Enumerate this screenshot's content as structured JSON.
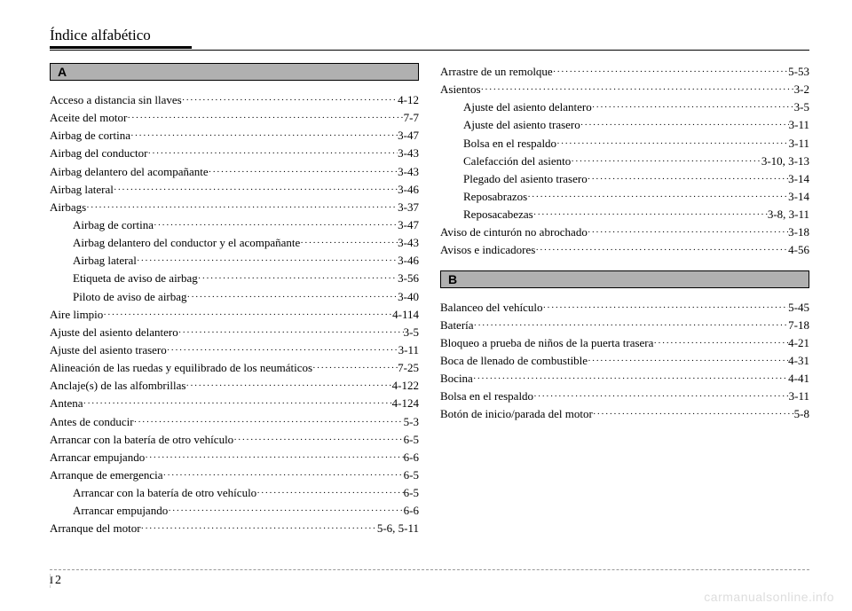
{
  "header": {
    "title": "Índice alfabético"
  },
  "footer": {
    "section": "I",
    "page": "2"
  },
  "watermark": "carmanualsonline.info",
  "leaders": "······················································································································",
  "letters": {
    "A": "A",
    "B": "B"
  },
  "col1": [
    {
      "letter": "A"
    },
    {
      "label": "Acceso a distancia sin llaves",
      "page": "4-12"
    },
    {
      "label": "Aceite del motor",
      "page": "7-7"
    },
    {
      "label": "Airbag de cortina",
      "page": "3-47"
    },
    {
      "label": "Airbag del conductor",
      "page": "3-43"
    },
    {
      "label": "Airbag delantero del acompañante",
      "page": "3-43"
    },
    {
      "label": "Airbag lateral",
      "page": "3-46"
    },
    {
      "label": "Airbags",
      "page": "3-37"
    },
    {
      "label": "Airbag de cortina",
      "page": "3-47",
      "indent": true
    },
    {
      "label": "Airbag delantero del conductor y el acompañante",
      "page": "3-43",
      "indent": true
    },
    {
      "label": "Airbag lateral",
      "page": "3-46",
      "indent": true
    },
    {
      "label": "Etiqueta de aviso de airbag",
      "page": "3-56",
      "indent": true
    },
    {
      "label": "Piloto de aviso de airbag",
      "page": "3-40",
      "indent": true
    },
    {
      "label": "Aire limpio",
      "page": "4-114"
    },
    {
      "label": "Ajuste del asiento delantero",
      "page": "3-5"
    },
    {
      "label": "Ajuste del asiento trasero",
      "page": "3-11"
    },
    {
      "label": "Alineación de las ruedas y equilibrado de los neumáticos",
      "page": "7-25"
    },
    {
      "label": "Anclaje(s) de las alfombrillas",
      "page": "4-122"
    },
    {
      "label": "Antena",
      "page": "4-124"
    },
    {
      "label": "Antes de conducir",
      "page": "5-3"
    },
    {
      "label": "Arrancar con la batería de otro vehículo",
      "page": "6-5"
    },
    {
      "label": "Arrancar empujando",
      "page": "6-6"
    },
    {
      "label": "Arranque de emergencia",
      "page": "6-5"
    },
    {
      "label": "Arrancar con la batería de otro vehículo",
      "page": "6-5",
      "indent": true
    },
    {
      "label": "Arrancar empujando",
      "page": "6-6",
      "indent": true
    },
    {
      "label": "Arranque del motor",
      "page": "5-6, 5-11"
    }
  ],
  "col2a": [
    {
      "label": "Arrastre de un remolque",
      "page": "5-53"
    },
    {
      "label": "Asientos",
      "page": "3-2"
    },
    {
      "label": "Ajuste del asiento delantero",
      "page": "3-5",
      "indent": true
    },
    {
      "label": "Ajuste del asiento trasero",
      "page": "3-11",
      "indent": true
    },
    {
      "label": "Bolsa en el respaldo",
      "page": "3-11",
      "indent": true
    },
    {
      "label": "Calefacción del asiento",
      "page": "3-10, 3-13",
      "indent": true
    },
    {
      "label": "Plegado del asiento trasero",
      "page": "3-14",
      "indent": true
    },
    {
      "label": "Reposabrazos",
      "page": "3-14",
      "indent": true
    },
    {
      "label": "Reposacabezas",
      "page": "3-8, 3-11",
      "indent": true
    },
    {
      "label": "Aviso de cinturón no abrochado",
      "page": "3-18"
    },
    {
      "label": "Avisos e indicadores",
      "page": "4-56"
    }
  ],
  "col2b": [
    {
      "letter": "B"
    },
    {
      "label": "Balanceo del vehículo",
      "page": "5-45"
    },
    {
      "label": "Batería",
      "page": "7-18"
    },
    {
      "label": "Bloqueo a prueba de niños de la puerta trasera",
      "page": "4-21"
    },
    {
      "label": "Boca de llenado de combustible",
      "page": "4-31"
    },
    {
      "label": "Bocina",
      "page": "4-41"
    },
    {
      "label": "Bolsa en el respaldo",
      "page": "3-11"
    },
    {
      "label": "Botón de inicio/parada del motor",
      "page": "5-8"
    }
  ]
}
